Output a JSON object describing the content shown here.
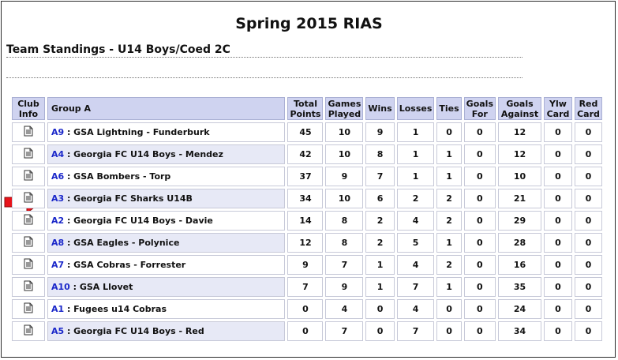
{
  "page": {
    "title": "Spring 2015 RIAS",
    "subtitle": "Team Standings - U14 Boys/Coed 2C"
  },
  "colors": {
    "header_bg": "#cfd3f0",
    "alt_row_bg": "#e7e9f6",
    "link": "#1a27c9",
    "arrow": "#e8131a"
  },
  "table": {
    "headers": {
      "club_info": "Club Info",
      "group": "Group A",
      "total_points": "Total Points",
      "games_played": "Games Played",
      "wins": "Wins",
      "losses": "Losses",
      "ties": "Ties",
      "goals_for": "Goals For",
      "goals_against": "Goals Against",
      "ylw_card": "Ylw Card",
      "red_card": "Red Card"
    },
    "rows": [
      {
        "code": "A9",
        "sep": " : ",
        "team": "GSA Lightning - Funderburk",
        "points": "45",
        "played": "10",
        "wins": "9",
        "losses": "1",
        "ties": "0",
        "gf": "0",
        "ga": "12",
        "ylw": "0",
        "red": "0"
      },
      {
        "code": "A4",
        "sep": " : ",
        "team": "Georgia FC U14 Boys - Mendez",
        "points": "42",
        "played": "10",
        "wins": "8",
        "losses": "1",
        "ties": "1",
        "gf": "0",
        "ga": "12",
        "ylw": "0",
        "red": "0"
      },
      {
        "code": "A6",
        "sep": " : ",
        "team": "GSA Bombers - Torp",
        "points": "37",
        "played": "9",
        "wins": "7",
        "losses": "1",
        "ties": "1",
        "gf": "0",
        "ga": "10",
        "ylw": "0",
        "red": "0"
      },
      {
        "code": "A3",
        "sep": " : ",
        "team": "Georgia FC Sharks U14B",
        "points": "34",
        "played": "10",
        "wins": "6",
        "losses": "2",
        "ties": "2",
        "gf": "0",
        "ga": "21",
        "ylw": "0",
        "red": "0"
      },
      {
        "code": "A2",
        "sep": " : ",
        "team": "Georgia FC U14 Boys - Davie",
        "points": "14",
        "played": "8",
        "wins": "2",
        "losses": "4",
        "ties": "2",
        "gf": "0",
        "ga": "29",
        "ylw": "0",
        "red": "0"
      },
      {
        "code": "A8",
        "sep": " : ",
        "team": "GSA Eagles - Polynice",
        "points": "12",
        "played": "8",
        "wins": "2",
        "losses": "5",
        "ties": "1",
        "gf": "0",
        "ga": "28",
        "ylw": "0",
        "red": "0"
      },
      {
        "code": "A7",
        "sep": " : ",
        "team": "GSA Cobras - Forrester",
        "points": "9",
        "played": "7",
        "wins": "1",
        "losses": "4",
        "ties": "2",
        "gf": "0",
        "ga": "16",
        "ylw": "0",
        "red": "0"
      },
      {
        "code": "A10",
        "sep": " : ",
        "team": "GSA Llovet",
        "points": "7",
        "played": "9",
        "wins": "1",
        "losses": "7",
        "ties": "1",
        "gf": "0",
        "ga": "35",
        "ylw": "0",
        "red": "0"
      },
      {
        "code": "A1",
        "sep": " : ",
        "team": "Fugees u14 Cobras",
        "points": "0",
        "played": "4",
        "wins": "0",
        "losses": "4",
        "ties": "0",
        "gf": "0",
        "ga": "24",
        "ylw": "0",
        "red": "0"
      },
      {
        "code": "A5",
        "sep": " : ",
        "team": "Georgia FC U14 Boys - Red",
        "points": "0",
        "played": "7",
        "wins": "0",
        "losses": "7",
        "ties": "0",
        "gf": "0",
        "ga": "34",
        "ylw": "0",
        "red": "0"
      }
    ]
  },
  "highlight": {
    "icon": "red-arrow-icon",
    "row_code": "A3"
  }
}
